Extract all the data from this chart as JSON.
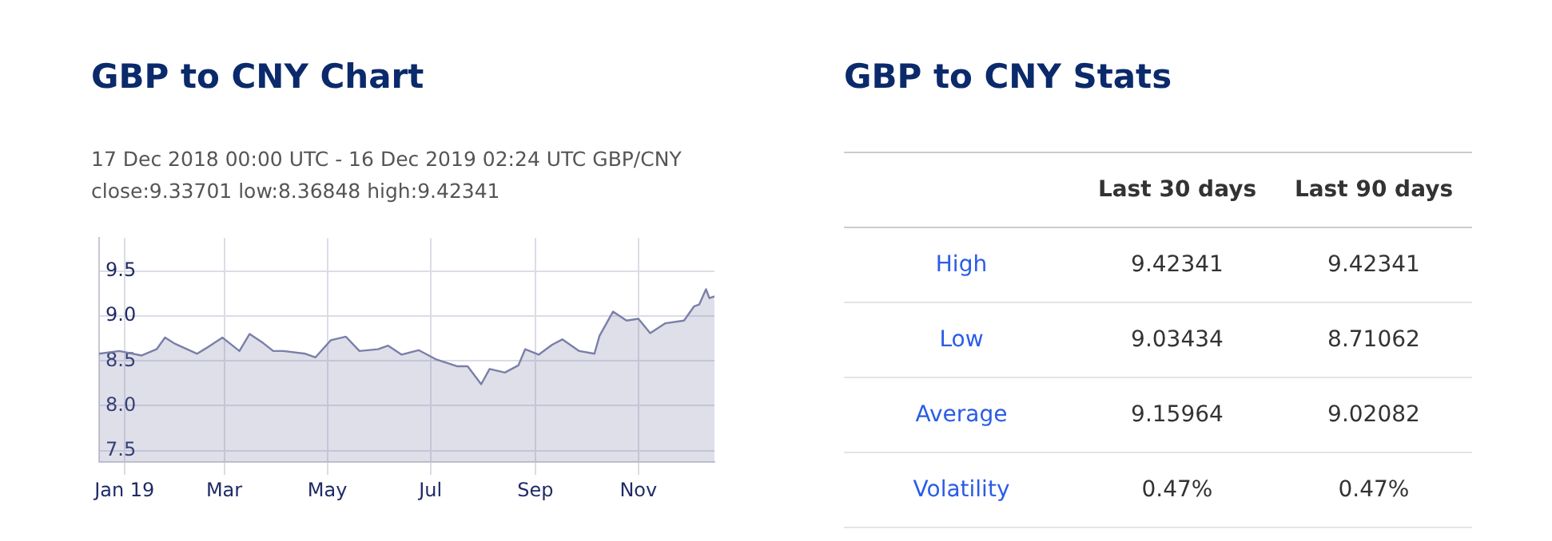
{
  "chart_data": [
    {
      "type": "area",
      "title": "GBP to CNY Chart",
      "subtitle": "17 Dec 2018 00:00 UTC - 16 Dec 2019 02:24 UTC  GBP/CNY",
      "annotations": [
        "close:9.33701 low:8.36848 high:9.42341"
      ],
      "x": [
        "2018-12-17",
        "2018-12-29",
        "2019-01-11",
        "2019-01-20",
        "2019-01-25",
        "2019-01-31",
        "2019-02-13",
        "2019-02-19",
        "2019-02-28",
        "2019-03-10",
        "2019-03-16",
        "2019-03-24",
        "2019-03-30",
        "2019-04-05",
        "2019-04-18",
        "2019-04-24",
        "2019-05-03",
        "2019-05-12",
        "2019-05-20",
        "2019-05-31",
        "2019-06-06",
        "2019-06-14",
        "2019-06-24",
        "2019-07-04",
        "2019-07-17",
        "2019-07-23",
        "2019-07-31",
        "2019-08-05",
        "2019-08-14",
        "2019-08-22",
        "2019-08-26",
        "2019-09-03",
        "2019-09-11",
        "2019-09-17",
        "2019-09-27",
        "2019-10-06",
        "2019-10-09",
        "2019-10-17",
        "2019-10-25",
        "2019-11-01",
        "2019-11-08",
        "2019-11-17",
        "2019-11-28",
        "2019-12-04",
        "2019-12-07",
        "2019-12-11",
        "2019-12-13",
        "2019-12-16"
      ],
      "series": [
        {
          "color": "#7a7fa8",
          "values": [
            8.58,
            8.61,
            8.56,
            8.63,
            8.76,
            8.69,
            8.58,
            8.65,
            8.76,
            8.61,
            8.8,
            8.7,
            8.61,
            8.61,
            8.58,
            8.54,
            8.73,
            8.77,
            8.61,
            8.63,
            8.67,
            8.57,
            8.62,
            8.52,
            8.44,
            8.44,
            8.24,
            8.41,
            8.37,
            8.45,
            8.63,
            8.57,
            8.68,
            8.74,
            8.61,
            8.58,
            8.78,
            9.05,
            8.95,
            8.97,
            8.81,
            8.92,
            8.95,
            9.11,
            9.13,
            9.3,
            9.2,
            9.22
          ]
        }
      ],
      "xlim": [
        "2018-12-17",
        "2019-12-16"
      ],
      "xticks": [
        {
          "value": "2019-01-01",
          "label": "Jan 19"
        },
        {
          "value": "2019-03-01",
          "label": "Mar"
        },
        {
          "value": "2019-05-01",
          "label": "May"
        },
        {
          "value": "2019-07-01",
          "label": "Jul"
        },
        {
          "value": "2019-09-01",
          "label": "Sep"
        },
        {
          "value": "2019-11-01",
          "label": "Nov"
        }
      ],
      "ylim": [
        7.37,
        9.87
      ],
      "yticks": [
        7.5,
        {
          "value": 8,
          "label": "8.0"
        },
        8.5,
        {
          "value": 9,
          "label": "9.0"
        },
        9.5
      ],
      "grid": true,
      "legend": false,
      "marker": "none"
    },
    {
      "type": "other",
      "title": "GBP to CNY Stats",
      "categories": [
        "High",
        "Low",
        "Average",
        "Volatility"
      ],
      "series": [
        {
          "name": "Last 30 days",
          "values": [
            9.42341,
            9.03434,
            9.15964,
            0.47
          ],
          "value_labels": [
            "9.42341",
            "9.03434",
            "9.15964",
            "0.47%"
          ]
        },
        {
          "name": "Last 90 days",
          "values": [
            9.42341,
            8.71062,
            9.02082,
            0.47
          ],
          "value_labels": [
            "9.42341",
            "8.71062",
            "9.02082",
            "0.47%"
          ]
        }
      ]
    }
  ]
}
